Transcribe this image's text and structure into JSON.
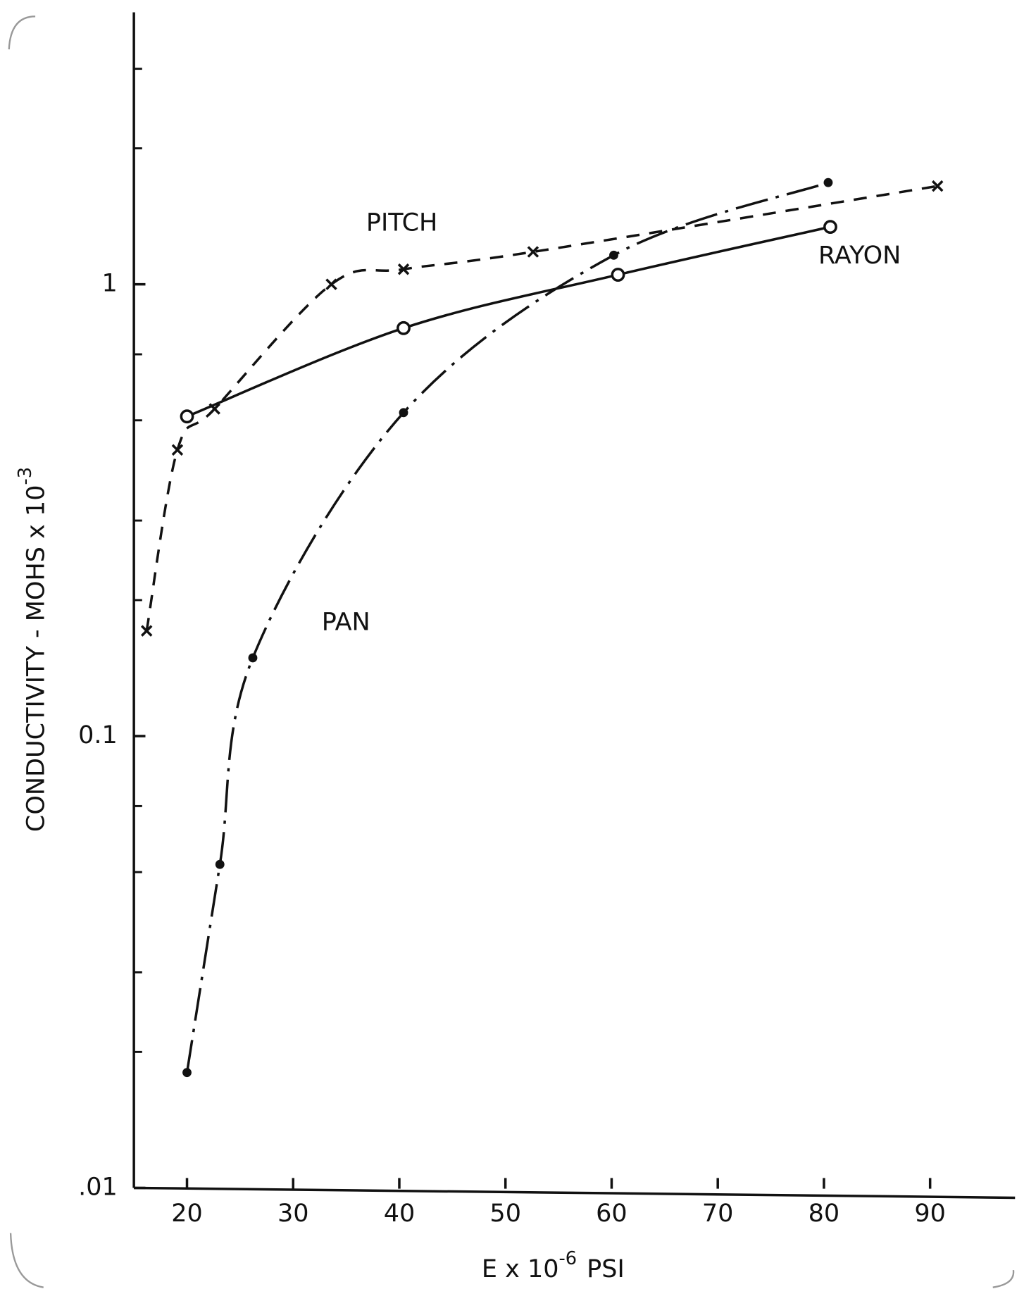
{
  "chart_data": {
    "type": "line",
    "xlabel": [
      "E x 10",
      "-6",
      "PSI"
    ],
    "ylabel": [
      "CONDUCTIVITY - MOHS x 10",
      "-3"
    ],
    "xlim": [
      15,
      98
    ],
    "ylim": [
      0.01,
      4
    ],
    "log_y": true,
    "xticks": [
      20,
      30,
      40,
      50,
      60,
      70,
      80,
      90
    ],
    "yticks": [
      {
        "value": 0.01,
        "label": ".01"
      },
      0.1,
      1
    ],
    "yminor": [
      0.02,
      0.03,
      0.05,
      0.07,
      0.2,
      0.3,
      0.5,
      0.7,
      2,
      3
    ],
    "grid": false,
    "series": [
      {
        "name": "PITCH",
        "color": "#111111",
        "style": "dashed",
        "marker": "x",
        "x": [
          16.2,
          19.1,
          22.6,
          33.6,
          40.4,
          52.6,
          90.7
        ],
        "values": [
          0.171,
          0.43,
          0.53,
          1.0,
          1.08,
          1.18,
          1.65
        ]
      },
      {
        "name": "RAYON",
        "color": "#111111",
        "style": "solid",
        "marker": "circle",
        "x": [
          20,
          40.4,
          60.6,
          80.6
        ],
        "values": [
          0.51,
          0.8,
          1.05,
          1.34
        ]
      },
      {
        "name": "PAN",
        "color": "#111111",
        "style": "dashdot",
        "marker": "dot",
        "x": [
          20,
          23.1,
          26.2,
          40.4,
          60.2,
          80.4
        ],
        "values": [
          0.018,
          0.052,
          0.149,
          0.52,
          1.16,
          1.68
        ]
      }
    ]
  }
}
